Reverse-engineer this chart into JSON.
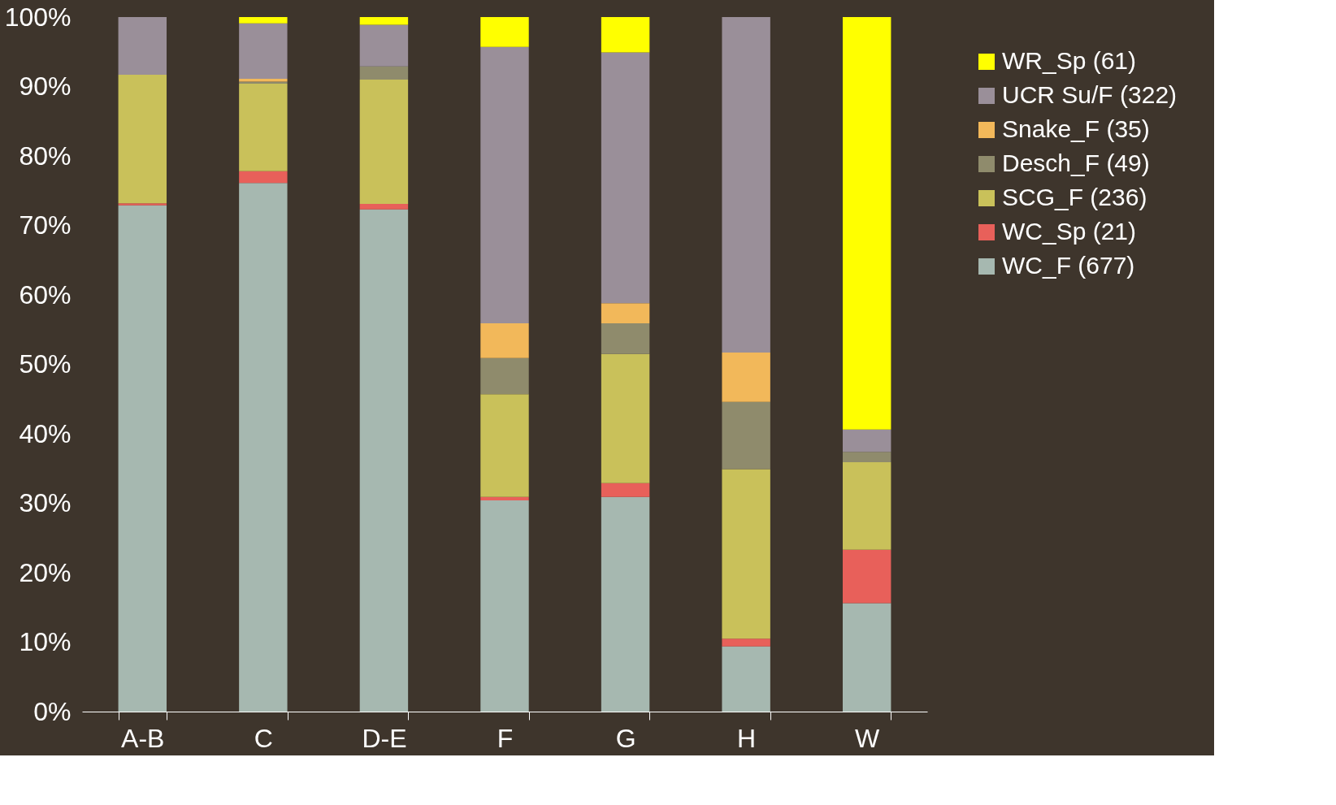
{
  "chart_data": {
    "type": "bar",
    "stacked": true,
    "legend": "right",
    "grid": false,
    "categories": [
      "A-B",
      "C",
      "D-E",
      "F",
      "G",
      "H",
      "W"
    ],
    "ylim": [
      0,
      100
    ],
    "yticks": [
      {
        "value": 0,
        "label": "0%"
      },
      {
        "value": 10,
        "label": "10%"
      },
      {
        "value": 20,
        "label": "20%"
      },
      {
        "value": 30,
        "label": "30%"
      },
      {
        "value": 40,
        "label": "40%"
      },
      {
        "value": 50,
        "label": "50%"
      },
      {
        "value": 60,
        "label": "60%"
      },
      {
        "value": 70,
        "label": "70%"
      },
      {
        "value": 80,
        "label": "80%"
      },
      {
        "value": 90,
        "label": "90%"
      },
      {
        "value": 100,
        "label": "100%"
      }
    ],
    "series": [
      {
        "name": "WC_F (677)",
        "color": "#a6b8b0",
        "values": [
          72.9,
          76.1,
          72.3,
          30.4,
          30.9,
          9.4,
          15.6
        ]
      },
      {
        "name": "WC_Sp (21)",
        "color": "#e8605a",
        "values": [
          0.3,
          1.7,
          0.8,
          0.5,
          2.0,
          1.1,
          7.7
        ]
      },
      {
        "name": "SCG_F (236)",
        "color": "#c9c15a",
        "values": [
          18.5,
          12.6,
          17.9,
          14.8,
          18.6,
          24.4,
          12.6
        ]
      },
      {
        "name": "Desch_F (49)",
        "color": "#8f8b6c",
        "values": [
          0,
          0.3,
          1.9,
          5.2,
          4.4,
          9.7,
          1.5
        ]
      },
      {
        "name": "Snake_F (35)",
        "color": "#f2b85a",
        "values": [
          0,
          0.4,
          0,
          5.0,
          2.9,
          7.1,
          0
        ]
      },
      {
        "name": "UCR Su/F (322)",
        "color": "#9a8f99",
        "values": [
          8.3,
          8.0,
          6.0,
          39.8,
          36.1,
          48.3,
          3.2
        ]
      },
      {
        "name": "WR_Sp (61)",
        "color": "#ffff00",
        "values": [
          0,
          0.9,
          1.1,
          4.3,
          5.1,
          0,
          59.4
        ]
      }
    ]
  }
}
